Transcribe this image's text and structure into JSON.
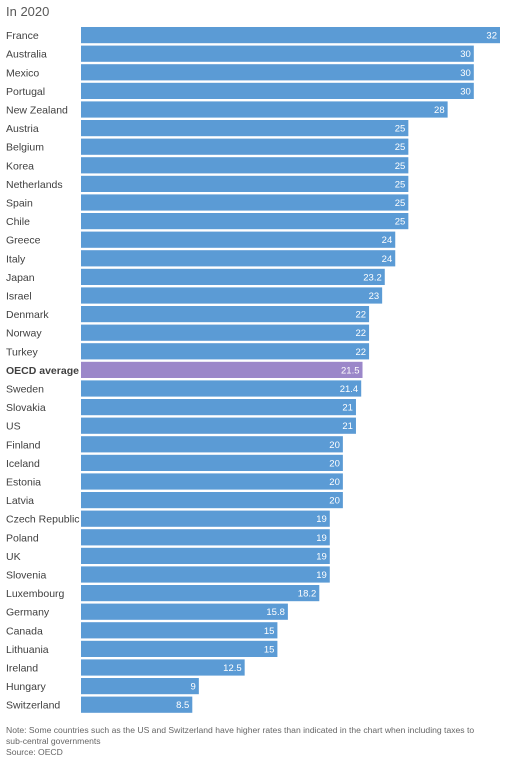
{
  "subtitle": "In 2020",
  "footer": {
    "note": "Note: Some countries such as the US and Switzerland have higher rates than indicated in the chart when including taxes to sub-central governments",
    "source": "Source: OECD"
  },
  "colors": {
    "bar": "#5b9bd5",
    "highlight": "#9b87c9",
    "label_text": "#404040",
    "value_text": "#ffffff"
  },
  "chart_data": {
    "type": "bar",
    "orientation": "horizontal",
    "title": "In 2020",
    "xlim": [
      0,
      32
    ],
    "highlight_category": "OECD average",
    "categories": [
      "France",
      "Australia",
      "Mexico",
      "Portugal",
      "New Zealand",
      "Austria",
      "Belgium",
      "Korea",
      "Netherlands",
      "Spain",
      "Chile",
      "Greece",
      "Italy",
      "Japan",
      "Israel",
      "Denmark",
      "Norway",
      "Turkey",
      "OECD average",
      "Sweden",
      "Slovakia",
      "US",
      "Finland",
      "Iceland",
      "Estonia",
      "Latvia",
      "Czech Republic",
      "Poland",
      "UK",
      "Slovenia",
      "Luxembourg",
      "Germany",
      "Canada",
      "Lithuania",
      "Ireland",
      "Hungary",
      "Switzerland"
    ],
    "values": [
      32,
      30,
      30,
      30,
      28,
      25,
      25,
      25,
      25,
      25,
      25,
      24,
      24,
      23.2,
      23,
      22,
      22,
      22,
      21.5,
      21.4,
      21,
      21,
      20,
      20,
      20,
      20,
      19,
      19,
      19,
      19,
      18.2,
      15.8,
      15,
      15,
      12.5,
      9,
      8.5
    ],
    "value_labels": [
      "32",
      "30",
      "30",
      "30",
      "28",
      "25",
      "25",
      "25",
      "25",
      "25",
      "25",
      "24",
      "24",
      "23.2",
      "23",
      "22",
      "22",
      "22",
      "21.5",
      "21.4",
      "21",
      "21",
      "20",
      "20",
      "20",
      "20",
      "19",
      "19",
      "19",
      "19",
      "18.2",
      "15.8",
      "15",
      "15",
      "12.5",
      "9",
      "8.5"
    ],
    "grid": false,
    "legend": "none"
  }
}
